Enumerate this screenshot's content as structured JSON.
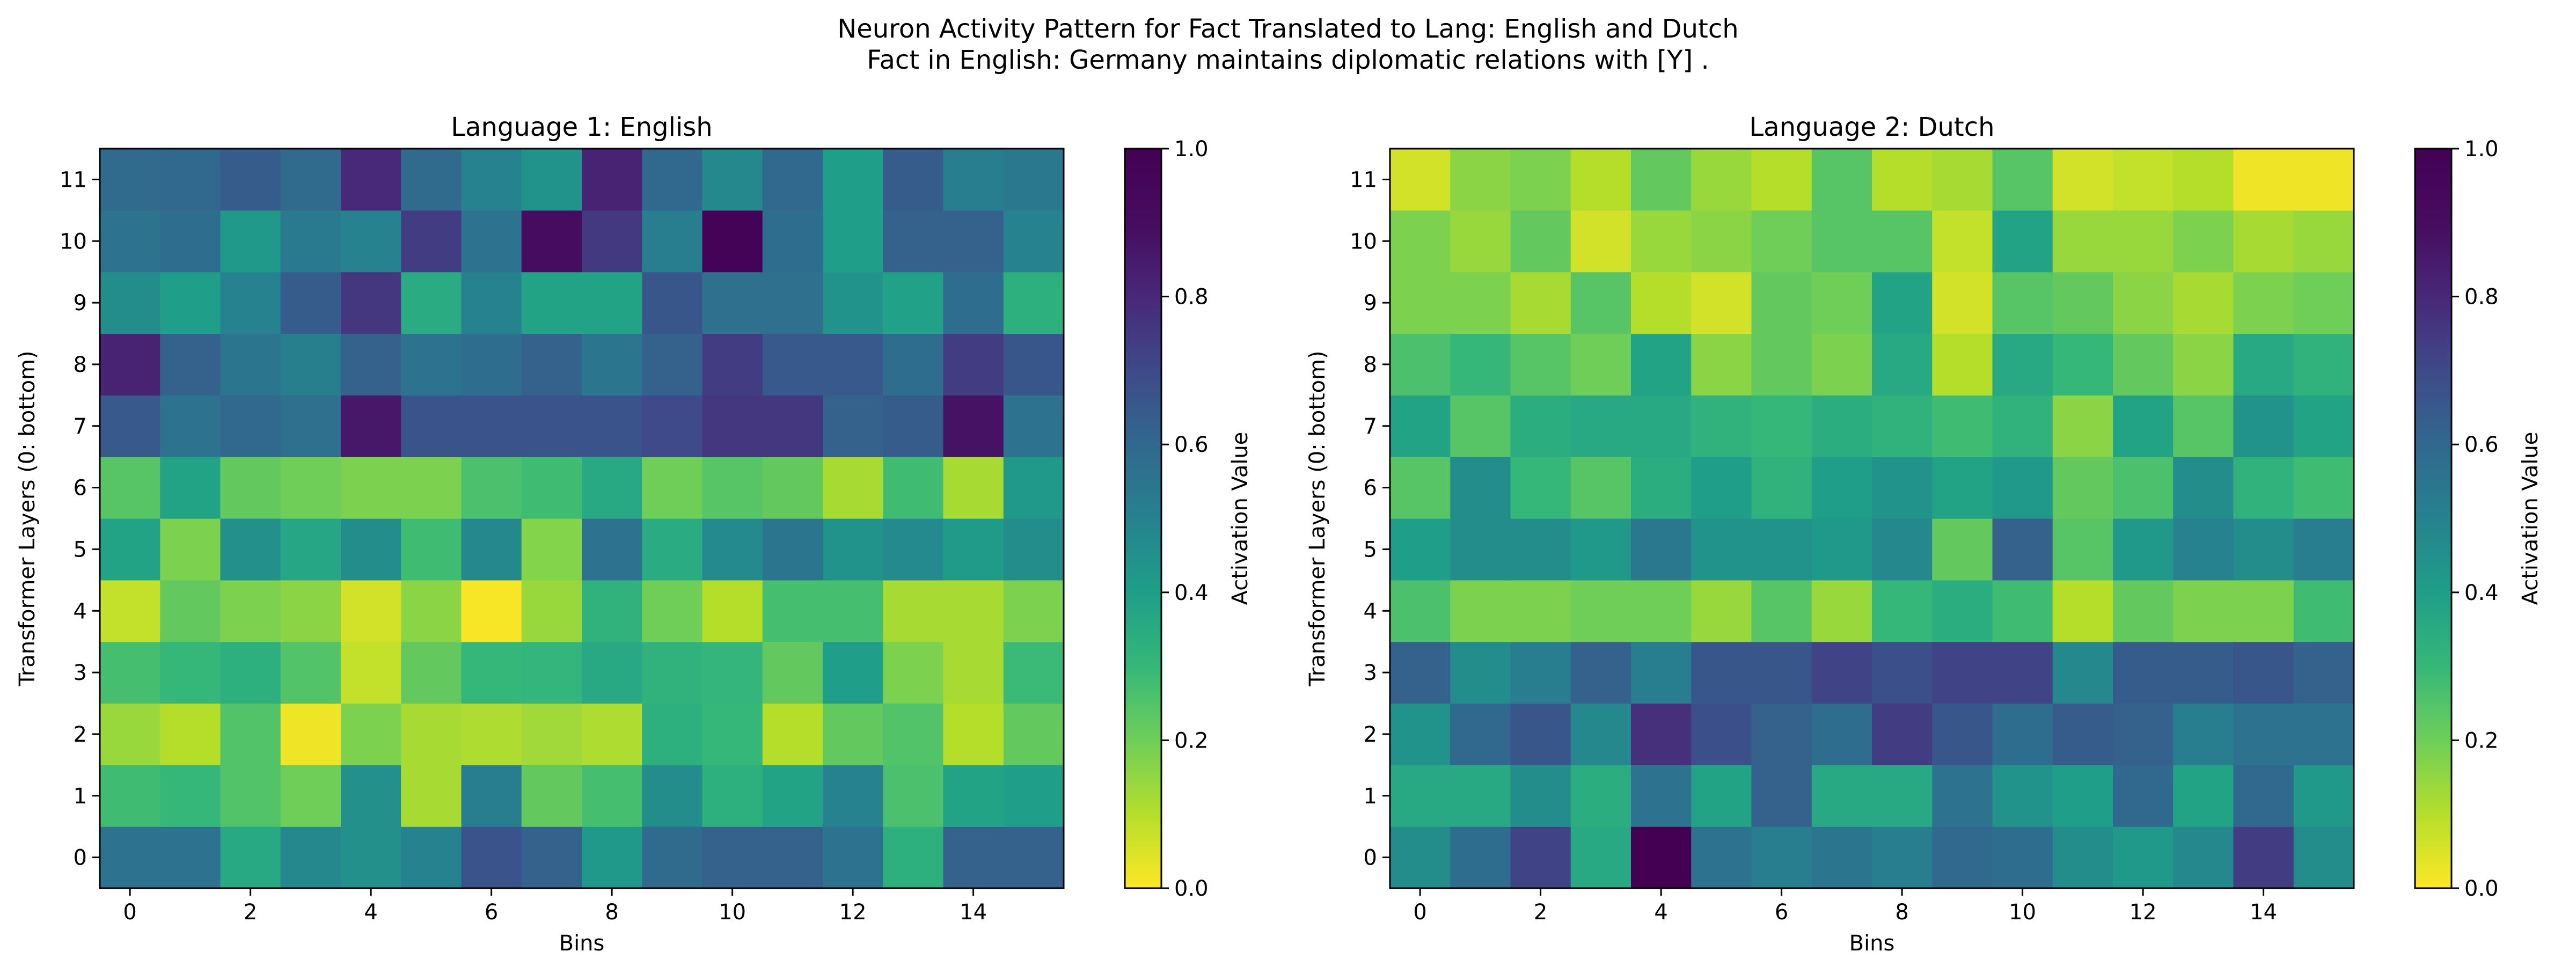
{
  "figure": {
    "suptitle_line1": "Neuron Activity Pattern for Fact Translated to Lang: English and Dutch",
    "suptitle_line2": "Fact in English: Germany maintains diplomatic relations with [Y] ."
  },
  "chart_data": [
    {
      "type": "heatmap",
      "title": "Language 1: English",
      "xlabel": "Bins",
      "ylabel": "Transformer Layers (0: bottom)",
      "x_ticks": [
        0,
        2,
        4,
        6,
        8,
        10,
        12,
        14
      ],
      "y_ticks": [
        0,
        1,
        2,
        3,
        4,
        5,
        6,
        7,
        8,
        9,
        10,
        11
      ],
      "colorbar_label": "Activation Value",
      "colorbar_ticks": [
        "0.0",
        "0.2",
        "0.4",
        "0.6",
        "0.8",
        "1.0"
      ],
      "colormap": "viridis_r",
      "vmin": 0.0,
      "vmax": 1.0,
      "values": [
        [
          0.56,
          0.56,
          0.36,
          0.48,
          0.45,
          0.5,
          0.67,
          0.62,
          0.42,
          0.59,
          0.62,
          0.62,
          0.56,
          0.33,
          0.62,
          0.62
        ],
        [
          0.28,
          0.3,
          0.25,
          0.2,
          0.45,
          0.12,
          0.52,
          0.22,
          0.27,
          0.46,
          0.33,
          0.38,
          0.5,
          0.26,
          0.38,
          0.4
        ],
        [
          0.14,
          0.1,
          0.25,
          0.02,
          0.18,
          0.12,
          0.11,
          0.13,
          0.11,
          0.33,
          0.3,
          0.1,
          0.22,
          0.25,
          0.1,
          0.22
        ],
        [
          0.27,
          0.3,
          0.33,
          0.25,
          0.08,
          0.22,
          0.3,
          0.31,
          0.36,
          0.32,
          0.31,
          0.22,
          0.4,
          0.18,
          0.12,
          0.29
        ],
        [
          0.08,
          0.22,
          0.18,
          0.16,
          0.06,
          0.16,
          0.01,
          0.14,
          0.32,
          0.2,
          0.1,
          0.27,
          0.27,
          0.12,
          0.12,
          0.18
        ],
        [
          0.38,
          0.18,
          0.45,
          0.37,
          0.46,
          0.28,
          0.48,
          0.17,
          0.56,
          0.35,
          0.47,
          0.55,
          0.44,
          0.47,
          0.41,
          0.46
        ],
        [
          0.24,
          0.38,
          0.22,
          0.2,
          0.18,
          0.18,
          0.26,
          0.28,
          0.36,
          0.2,
          0.24,
          0.22,
          0.12,
          0.28,
          0.12,
          0.42
        ],
        [
          0.65,
          0.56,
          0.6,
          0.57,
          0.86,
          0.67,
          0.67,
          0.67,
          0.67,
          0.7,
          0.76,
          0.76,
          0.62,
          0.64,
          0.88,
          0.56
        ],
        [
          0.82,
          0.62,
          0.55,
          0.51,
          0.62,
          0.56,
          0.58,
          0.62,
          0.55,
          0.62,
          0.74,
          0.65,
          0.65,
          0.58,
          0.74,
          0.66
        ],
        [
          0.46,
          0.4,
          0.5,
          0.64,
          0.76,
          0.35,
          0.5,
          0.38,
          0.38,
          0.66,
          0.57,
          0.57,
          0.44,
          0.39,
          0.58,
          0.33
        ],
        [
          0.56,
          0.58,
          0.42,
          0.53,
          0.5,
          0.74,
          0.56,
          0.9,
          0.75,
          0.52,
          0.98,
          0.58,
          0.4,
          0.62,
          0.62,
          0.5
        ],
        [
          0.59,
          0.6,
          0.64,
          0.59,
          0.8,
          0.59,
          0.5,
          0.44,
          0.82,
          0.6,
          0.48,
          0.6,
          0.4,
          0.64,
          0.52,
          0.54
        ]
      ]
    },
    {
      "type": "heatmap",
      "title": "Language 2: Dutch",
      "xlabel": "Bins",
      "ylabel": "Transformer Layers (0: bottom)",
      "x_ticks": [
        0,
        2,
        4,
        6,
        8,
        10,
        12,
        14
      ],
      "y_ticks": [
        0,
        1,
        2,
        3,
        4,
        5,
        6,
        7,
        8,
        9,
        10,
        11
      ],
      "colorbar_label": "Activation Value",
      "colorbar_ticks": [
        "0.0",
        "0.2",
        "0.4",
        "0.6",
        "0.8",
        "1.0"
      ],
      "colormap": "viridis_r",
      "vmin": 0.0,
      "vmax": 1.0,
      "values": [
        [
          0.46,
          0.58,
          0.72,
          0.36,
          1.0,
          0.56,
          0.52,
          0.55,
          0.52,
          0.6,
          0.58,
          0.46,
          0.42,
          0.48,
          0.74,
          0.46
        ],
        [
          0.36,
          0.36,
          0.46,
          0.34,
          0.56,
          0.38,
          0.62,
          0.36,
          0.36,
          0.56,
          0.44,
          0.4,
          0.6,
          0.38,
          0.6,
          0.42
        ],
        [
          0.44,
          0.6,
          0.66,
          0.48,
          0.78,
          0.68,
          0.62,
          0.58,
          0.74,
          0.66,
          0.58,
          0.64,
          0.62,
          0.52,
          0.56,
          0.56
        ],
        [
          0.62,
          0.46,
          0.52,
          0.62,
          0.52,
          0.66,
          0.66,
          0.72,
          0.68,
          0.72,
          0.72,
          0.48,
          0.64,
          0.64,
          0.66,
          0.62
        ],
        [
          0.26,
          0.18,
          0.18,
          0.2,
          0.2,
          0.14,
          0.24,
          0.14,
          0.3,
          0.34,
          0.28,
          0.1,
          0.22,
          0.18,
          0.18,
          0.28
        ],
        [
          0.4,
          0.46,
          0.46,
          0.42,
          0.54,
          0.44,
          0.44,
          0.42,
          0.48,
          0.22,
          0.62,
          0.24,
          0.42,
          0.5,
          0.46,
          0.52
        ],
        [
          0.24,
          0.46,
          0.3,
          0.24,
          0.34,
          0.4,
          0.32,
          0.4,
          0.44,
          0.38,
          0.42,
          0.22,
          0.26,
          0.46,
          0.32,
          0.28
        ],
        [
          0.38,
          0.24,
          0.34,
          0.36,
          0.36,
          0.32,
          0.3,
          0.34,
          0.32,
          0.28,
          0.32,
          0.16,
          0.38,
          0.24,
          0.44,
          0.38
        ],
        [
          0.26,
          0.3,
          0.24,
          0.2,
          0.38,
          0.16,
          0.22,
          0.18,
          0.36,
          0.1,
          0.36,
          0.3,
          0.22,
          0.16,
          0.36,
          0.32
        ],
        [
          0.18,
          0.18,
          0.12,
          0.24,
          0.1,
          0.06,
          0.22,
          0.2,
          0.38,
          0.06,
          0.24,
          0.22,
          0.16,
          0.12,
          0.18,
          0.2
        ],
        [
          0.18,
          0.14,
          0.22,
          0.06,
          0.14,
          0.16,
          0.2,
          0.24,
          0.24,
          0.08,
          0.38,
          0.14,
          0.14,
          0.18,
          0.12,
          0.14
        ],
        [
          0.06,
          0.16,
          0.18,
          0.1,
          0.22,
          0.14,
          0.1,
          0.24,
          0.1,
          0.12,
          0.24,
          0.06,
          0.08,
          0.1,
          0.02,
          0.02
        ]
      ]
    }
  ]
}
